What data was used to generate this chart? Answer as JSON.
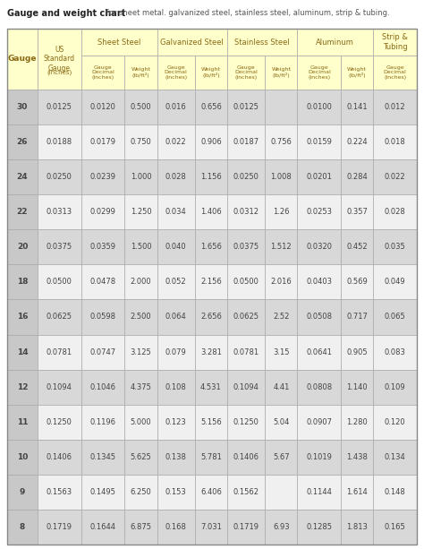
{
  "title_bold": "Gauge and weight chart",
  "title_normal": " for sheet metal. galvanized steel, stainless steel, aluminum, strip & tubing.",
  "background_color": "#ffffff",
  "header_bg": "#ffffcc",
  "row_bg_odd": "#d8d8d8",
  "row_bg_even": "#f0f0f0",
  "gauge_col_bg": "#c8c8c8",
  "header_text_color": "#8B6914",
  "data_text_color": "#444444",
  "border_color": "#aaaaaa",
  "rows": [
    {
      "gauge": "30",
      "us_in": "0.0125",
      "ss_dec": "0.0120",
      "ss_wt": "0.500",
      "galv_dec": "0.016",
      "galv_wt": "0.656",
      "st_dec": "0.0125",
      "st_wt": "",
      "al_dec": "0.0100",
      "al_wt": "0.141",
      "strip_dec": "0.012"
    },
    {
      "gauge": "26",
      "us_in": "0.0188",
      "ss_dec": "0.0179",
      "ss_wt": "0.750",
      "galv_dec": "0.022",
      "galv_wt": "0.906",
      "st_dec": "0.0187",
      "st_wt": "0.756",
      "al_dec": "0.0159",
      "al_wt": "0.224",
      "strip_dec": "0.018"
    },
    {
      "gauge": "24",
      "us_in": "0.0250",
      "ss_dec": "0.0239",
      "ss_wt": "1.000",
      "galv_dec": "0.028",
      "galv_wt": "1.156",
      "st_dec": "0.0250",
      "st_wt": "1.008",
      "al_dec": "0.0201",
      "al_wt": "0.284",
      "strip_dec": "0.022"
    },
    {
      "gauge": "22",
      "us_in": "0.0313",
      "ss_dec": "0.0299",
      "ss_wt": "1.250",
      "galv_dec": "0.034",
      "galv_wt": "1.406",
      "st_dec": "0.0312",
      "st_wt": "1.26",
      "al_dec": "0.0253",
      "al_wt": "0.357",
      "strip_dec": "0.028"
    },
    {
      "gauge": "20",
      "us_in": "0.0375",
      "ss_dec": "0.0359",
      "ss_wt": "1.500",
      "galv_dec": "0.040",
      "galv_wt": "1.656",
      "st_dec": "0.0375",
      "st_wt": "1.512",
      "al_dec": "0.0320",
      "al_wt": "0.452",
      "strip_dec": "0.035"
    },
    {
      "gauge": "18",
      "us_in": "0.0500",
      "ss_dec": "0.0478",
      "ss_wt": "2.000",
      "galv_dec": "0.052",
      "galv_wt": "2.156",
      "st_dec": "0.0500",
      "st_wt": "2.016",
      "al_dec": "0.0403",
      "al_wt": "0.569",
      "strip_dec": "0.049"
    },
    {
      "gauge": "16",
      "us_in": "0.0625",
      "ss_dec": "0.0598",
      "ss_wt": "2.500",
      "galv_dec": "0.064",
      "galv_wt": "2.656",
      "st_dec": "0.0625",
      "st_wt": "2.52",
      "al_dec": "0.0508",
      "al_wt": "0.717",
      "strip_dec": "0.065"
    },
    {
      "gauge": "14",
      "us_in": "0.0781",
      "ss_dec": "0.0747",
      "ss_wt": "3.125",
      "galv_dec": "0.079",
      "galv_wt": "3.281",
      "st_dec": "0.0781",
      "st_wt": "3.15",
      "al_dec": "0.0641",
      "al_wt": "0.905",
      "strip_dec": "0.083"
    },
    {
      "gauge": "12",
      "us_in": "0.1094",
      "ss_dec": "0.1046",
      "ss_wt": "4.375",
      "galv_dec": "0.108",
      "galv_wt": "4.531",
      "st_dec": "0.1094",
      "st_wt": "4.41",
      "al_dec": "0.0808",
      "al_wt": "1.140",
      "strip_dec": "0.109"
    },
    {
      "gauge": "11",
      "us_in": "0.1250",
      "ss_dec": "0.1196",
      "ss_wt": "5.000",
      "galv_dec": "0.123",
      "galv_wt": "5.156",
      "st_dec": "0.1250",
      "st_wt": "5.04",
      "al_dec": "0.0907",
      "al_wt": "1.280",
      "strip_dec": "0.120"
    },
    {
      "gauge": "10",
      "us_in": "0.1406",
      "ss_dec": "0.1345",
      "ss_wt": "5.625",
      "galv_dec": "0.138",
      "galv_wt": "5.781",
      "st_dec": "0.1406",
      "st_wt": "5.67",
      "al_dec": "0.1019",
      "al_wt": "1.438",
      "strip_dec": "0.134"
    },
    {
      "gauge": "9",
      "us_in": "0.1563",
      "ss_dec": "0.1495",
      "ss_wt": "6.250",
      "galv_dec": "0.153",
      "galv_wt": "6.406",
      "st_dec": "0.1562",
      "st_wt": "",
      "al_dec": "0.1144",
      "al_wt": "1.614",
      "strip_dec": "0.148"
    },
    {
      "gauge": "8",
      "us_in": "0.1719",
      "ss_dec": "0.1644",
      "ss_wt": "6.875",
      "galv_dec": "0.168",
      "galv_wt": "7.031",
      "st_dec": "0.1719",
      "st_wt": "6.93",
      "al_dec": "0.1285",
      "al_wt": "1.813",
      "strip_dec": "0.165"
    }
  ]
}
